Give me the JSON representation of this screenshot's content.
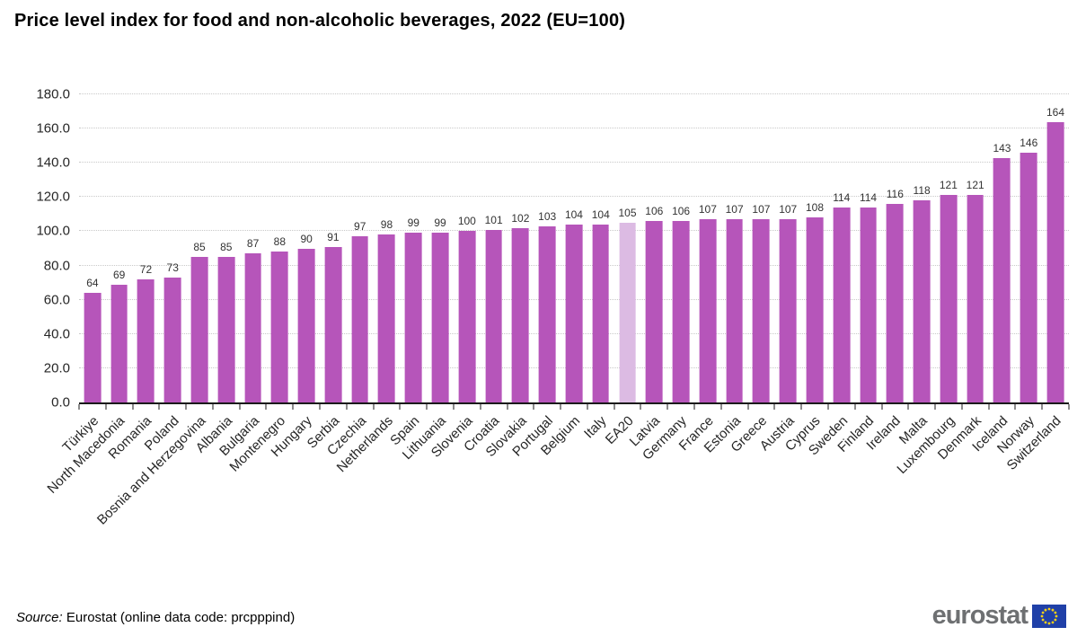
{
  "title": "Price level index for food and non-alcoholic beverages, 2022 (EU=100)",
  "source": {
    "prefix": "Source:",
    "rest": " Eurostat (online data code: prcpppind)"
  },
  "logo": {
    "text": "eurostat",
    "flag_blue": "#2040a8",
    "star_yellow": "#f7d117"
  },
  "chart_data": {
    "type": "bar",
    "title": "Price level index for food and non-alcoholic beverages, 2022 (EU=100)",
    "categories": [
      "Türkiye",
      "North Macedonia",
      "Romania",
      "Poland",
      "Bosnia and Herzegovina",
      "Albania",
      "Bulgaria",
      "Montenegro",
      "Hungary",
      "Serbia",
      "Czechia",
      "Netherlands",
      "Spain",
      "Lithuania",
      "Slovenia",
      "Croatia",
      "Slovakia",
      "Portugal",
      "Belgium",
      "Italy",
      "EA20",
      "Latvia",
      "Germany",
      "France",
      "Estonia",
      "Greece",
      "Austria",
      "Cyprus",
      "Sweden",
      "Finland",
      "Ireland",
      "Malta",
      "Luxembourg",
      "Denmark",
      "Iceland",
      "Norway",
      "Switzerland"
    ],
    "values": [
      64,
      69,
      72,
      73,
      85,
      85,
      87,
      88,
      90,
      91,
      97,
      98,
      99,
      99,
      100,
      101,
      102,
      103,
      104,
      104,
      105,
      106,
      106,
      107,
      107,
      107,
      107,
      108,
      114,
      114,
      116,
      118,
      121,
      121,
      143,
      146,
      164
    ],
    "highlight_category": "EA20",
    "bar_color": "#b655ba",
    "highlight_color": "#dcbbe3",
    "xlabel": "",
    "ylabel": "",
    "ylim": [
      0,
      180
    ],
    "ytick_step": 20,
    "ytick_decimals": 1,
    "grid": "horizontal-dotted",
    "legend": "none",
    "value_labels": true
  }
}
